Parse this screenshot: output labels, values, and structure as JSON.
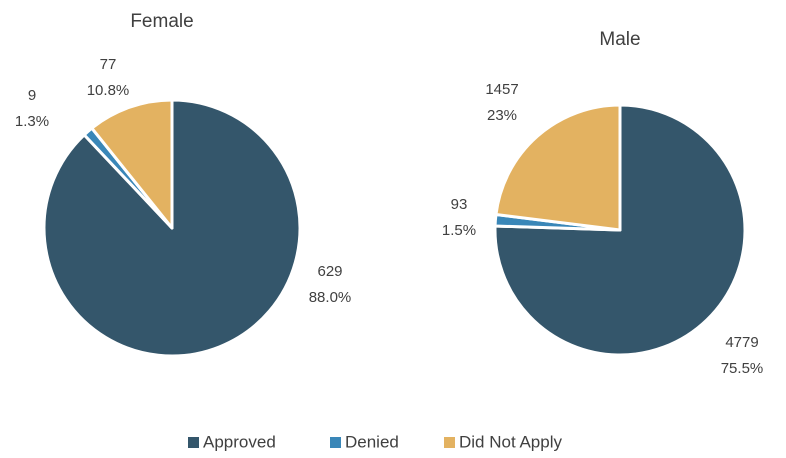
{
  "chart_data": [
    {
      "type": "pie",
      "title": "Female",
      "categories": [
        "Approved",
        "Denied",
        "Did Not Apply"
      ],
      "values": [
        629,
        9,
        77
      ],
      "percentages": [
        88.0,
        1.3,
        10.8
      ],
      "percentage_labels": [
        "88.0%",
        "1.3%",
        "10.8%"
      ],
      "colors": [
        "#34566b",
        "#3a87b8",
        "#e3b261"
      ]
    },
    {
      "type": "pie",
      "title": "Male",
      "categories": [
        "Approved",
        "Denied",
        "Did Not Apply"
      ],
      "values": [
        4779,
        93,
        1457
      ],
      "percentages": [
        75.5,
        1.5,
        23
      ],
      "percentage_labels": [
        "75.5%",
        "1.5%",
        "23%"
      ],
      "colors": [
        "#34566b",
        "#3a87b8",
        "#e3b261"
      ]
    }
  ]
}
